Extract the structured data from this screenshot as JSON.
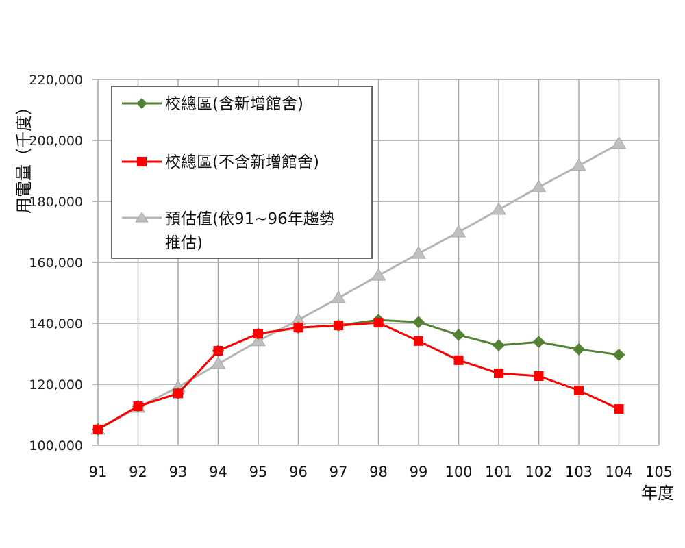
{
  "chart_data": {
    "type": "line",
    "title": "",
    "xlabel": "年度",
    "ylabel": "用電量（千度）",
    "x": [
      91,
      92,
      93,
      94,
      95,
      96,
      97,
      98,
      99,
      100,
      101,
      102,
      103,
      104
    ],
    "x_ticks": [
      "91",
      "92",
      "93",
      "94",
      "95",
      "96",
      "97",
      "98",
      "99",
      "100",
      "101",
      "102",
      "103",
      "104",
      "105"
    ],
    "xlim": [
      91,
      105
    ],
    "ylim": [
      100000,
      220000
    ],
    "y_ticks": [
      "100,000",
      "120,000",
      "140,000",
      "160,000",
      "180,000",
      "200,000",
      "220,000"
    ],
    "grid": true,
    "legend_position": "upper-left-inside",
    "series": [
      {
        "name": "校總區(含新增館舍)",
        "color": "#548235",
        "marker": "diamond",
        "values": [
          105200,
          112800,
          117000,
          131000,
          136600,
          138600,
          139300,
          141100,
          140400,
          136200,
          132800,
          133900,
          131500,
          129700
        ]
      },
      {
        "name": "校總區(不含新增館舍)",
        "color": "#ff0000",
        "marker": "square",
        "values": [
          105200,
          112800,
          117000,
          131000,
          136600,
          138600,
          139300,
          140200,
          134200,
          127900,
          123600,
          122700,
          118000,
          111900
        ]
      },
      {
        "name": "預估值(依91~96年趨勢推估)",
        "color": "#b4b4b4",
        "marker": "triangle",
        "values": [
          105200,
          112400,
          119100,
          126700,
          134200,
          141100,
          148300,
          155700,
          162900,
          169900,
          177300,
          184700,
          191700,
          198900
        ]
      }
    ]
  },
  "legend": {
    "items": [
      {
        "lines": [
          "校總區(含新增館舍)"
        ]
      },
      {
        "lines": [
          "校總區(不含新增館舍)"
        ]
      },
      {
        "lines": [
          "預估值(依91~96年趨勢",
          "推估)"
        ]
      }
    ]
  },
  "axis": {
    "y_title": "用電量（千度）",
    "x_title": "年度"
  }
}
